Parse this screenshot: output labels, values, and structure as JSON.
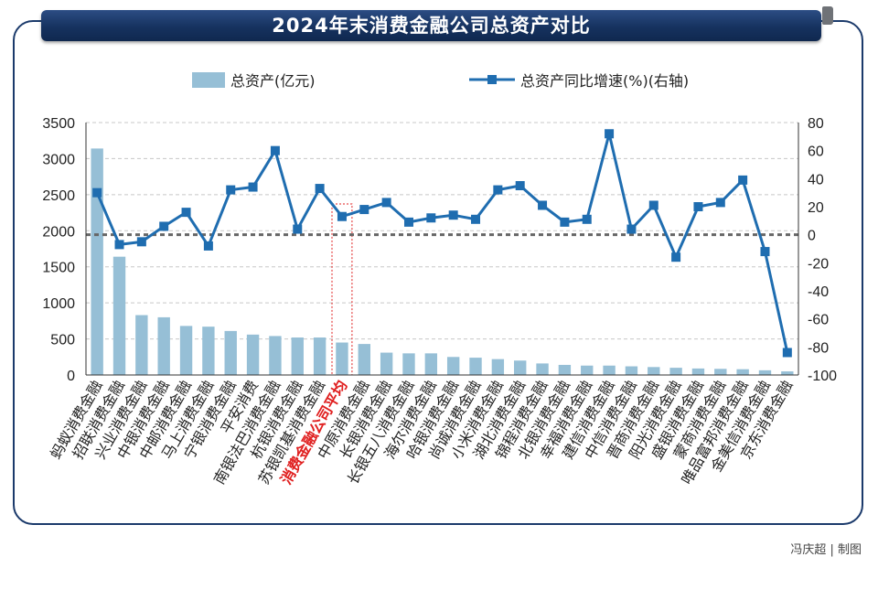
{
  "title": "2024年末消费金融公司总资产对比",
  "credit": "冯庆超 | 制图",
  "colors": {
    "bar": "#96bfd6",
    "line": "#1f6db0",
    "zero_line": "#666666",
    "highlight_label": "#e02020",
    "frame": "#1b3a6b"
  },
  "chart_data": {
    "type": "bar",
    "title": "2024年末消费金融公司总资产对比",
    "categories": [
      "蚂蚁消费金融",
      "招联消费金融",
      "兴业消费金融",
      "中银消费金融",
      "中邮消费金融",
      "马上消费金融",
      "宁银消费金融",
      "平安消费",
      "南银法巴消费金融",
      "杭银消费金融",
      "苏银凯基消费金融",
      "消费金融公司平均",
      "中原消费金融",
      "长银消费金融",
      "长银五八消费金融",
      "海尔消费金融",
      "哈银消费金融",
      "尚诚消费金融",
      "小米消费金融",
      "湖北消费金融",
      "锦程消费金融",
      "北银消费金融",
      "幸福消费金融",
      "建信消费金融",
      "中信消费金融",
      "晋商消费金融",
      "阳光消费金融",
      "盛银消费金融",
      "蒙商消费金融",
      "唯品富邦消费金融",
      "金美信消费金融",
      "京东消费金融"
    ],
    "highlight_category": "消费金融公司平均",
    "series": [
      {
        "name": "总资产(亿元)",
        "type": "bar",
        "axis": "left",
        "values": [
          3140,
          1640,
          830,
          800,
          680,
          670,
          610,
          560,
          540,
          520,
          520,
          450,
          430,
          310,
          300,
          300,
          250,
          240,
          220,
          200,
          160,
          140,
          130,
          130,
          120,
          110,
          100,
          90,
          85,
          80,
          65,
          50
        ]
      },
      {
        "name": "总资产同比增速(%)(右轴)",
        "type": "line",
        "axis": "right",
        "values": [
          30,
          -7,
          -5,
          6,
          16,
          -8,
          32,
          34,
          60,
          4,
          33,
          13,
          18,
          23,
          9,
          12,
          14,
          11,
          32,
          35,
          21,
          9,
          11,
          72,
          4,
          21,
          -16,
          20,
          23,
          39,
          -12,
          -84
        ]
      }
    ],
    "y_left": {
      "min": 0,
      "max": 3500,
      "step": 500,
      "ticks": [
        "0",
        "500",
        "1000",
        "1500",
        "2000",
        "2500",
        "3000",
        "3500"
      ]
    },
    "y_right": {
      "min": -100,
      "max": 80,
      "step": 20,
      "ticks": [
        "-100",
        "-80",
        "-60",
        "-40",
        "-20",
        "0",
        "20",
        "40",
        "60",
        "80"
      ]
    },
    "legend_position": "top",
    "grid": true,
    "zero_reference_line": 0
  }
}
